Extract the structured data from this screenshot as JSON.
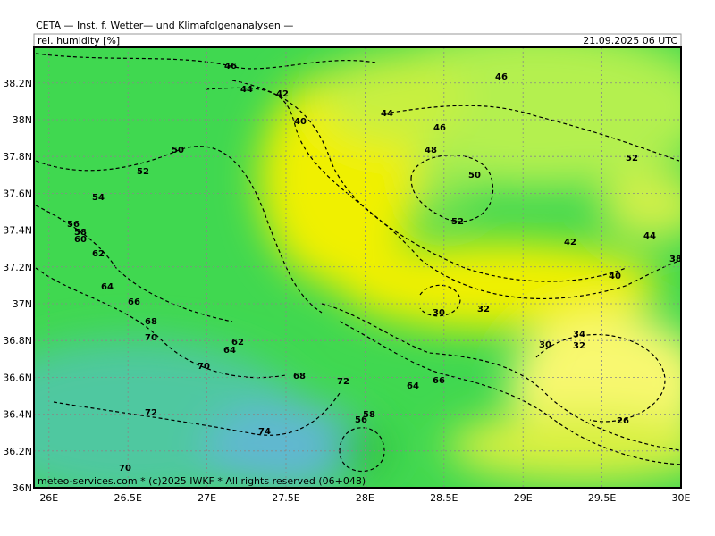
{
  "header": {
    "title": "CETA — Inst. f. Wetter— und Klimafolgenanalysen —",
    "field": "rel. humidity [%]",
    "time": "21.09.2025 06 UTC"
  },
  "footer": "meteo-services.com * (c)2025 IWKF * All rights reserved (06+048)",
  "map": {
    "xlim": [
      25.905,
      30
    ],
    "ylim": [
      36,
      38.393
    ],
    "xticks": [
      {
        "value": 26,
        "label": "26E"
      },
      {
        "value": 26.5,
        "label": "26.5E"
      },
      {
        "value": 27,
        "label": "27E"
      },
      {
        "value": 27.5,
        "label": "27.5E"
      },
      {
        "value": 28,
        "label": "28E"
      },
      {
        "value": 28.5,
        "label": "28.5E"
      },
      {
        "value": 29,
        "label": "29E"
      },
      {
        "value": 29.5,
        "label": "29.5E"
      },
      {
        "value": 30,
        "label": "30E"
      }
    ],
    "yticks": [
      {
        "value": 36,
        "label": "36N"
      },
      {
        "value": 36.2,
        "label": "36.2N"
      },
      {
        "value": 36.4,
        "label": "36.4N"
      },
      {
        "value": 36.6,
        "label": "36.6N"
      },
      {
        "value": 36.8,
        "label": "36.8N"
      },
      {
        "value": 37,
        "label": "37N"
      },
      {
        "value": 37.2,
        "label": "37.2N"
      },
      {
        "value": 37.4,
        "label": "37.4N"
      },
      {
        "value": 37.6,
        "label": "37.6N"
      },
      {
        "value": 37.8,
        "label": "37.8N"
      },
      {
        "value": 38,
        "label": "38N"
      },
      {
        "value": 38.2,
        "label": "38.2N"
      }
    ],
    "contour_labels": [
      46,
      44,
      42,
      40,
      44,
      46,
      48,
      50,
      46,
      52,
      42,
      44,
      40,
      38,
      50,
      52,
      54,
      56,
      58,
      60,
      62,
      64,
      66,
      68,
      70,
      70,
      72,
      70,
      74,
      68,
      72,
      62,
      64,
      52,
      30,
      32,
      30,
      34,
      32,
      26,
      66,
      64,
      58,
      56
    ]
  }
}
